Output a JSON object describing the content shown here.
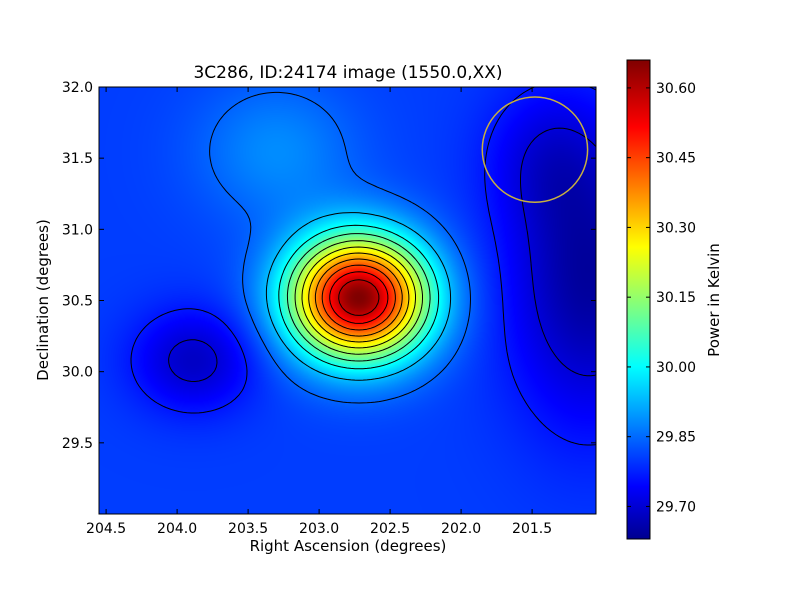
{
  "chart_data": {
    "type": "heatmap",
    "title": "3C286, ID:24174 image (1550.0,XX)",
    "xlabel": "Right Ascension (degrees)",
    "ylabel": "Declination (degrees)",
    "xlim": [
      204.55,
      201.05
    ],
    "ylim": [
      29.0,
      32.0
    ],
    "x_ticks": [
      204.5,
      204.0,
      203.5,
      203.0,
      202.5,
      202.0,
      201.5
    ],
    "x_tick_labels": [
      "204.5",
      "204.0",
      "203.5",
      "203.0",
      "202.5",
      "202.0",
      "201.5"
    ],
    "y_ticks": [
      29.5,
      30.0,
      30.5,
      31.0,
      31.5,
      32.0
    ],
    "y_tick_labels": [
      "29.5",
      "30.0",
      "30.5",
      "31.0",
      "31.5",
      "32.0"
    ],
    "grid": false,
    "colormap": "jet",
    "colorbar": {
      "label": "Power in Kelvin",
      "range": [
        29.63,
        30.66
      ],
      "ticks": [
        29.7,
        29.85,
        30.0,
        30.15,
        30.3,
        30.45,
        30.6
      ],
      "tick_labels": [
        "29.70",
        "29.85",
        "30.00",
        "30.15",
        "30.30",
        "30.45",
        "30.60"
      ]
    },
    "base_level": 29.82,
    "sources": [
      {
        "ra": 202.72,
        "dec": 30.52,
        "peak": 30.66,
        "sigma_ra": 0.34,
        "sigma_dec": 0.3
      },
      {
        "ra": 203.3,
        "dec": 31.55,
        "peak": 29.9,
        "sigma_ra": 0.4,
        "sigma_dec": 0.35
      },
      {
        "ra": 203.88,
        "dec": 30.08,
        "peak": 29.7,
        "sigma_ra": 0.3,
        "sigma_dec": 0.25
      },
      {
        "ra": 201.1,
        "dec": 30.65,
        "peak": 29.66,
        "sigma_ra": 0.4,
        "sigma_dec": 0.7
      },
      {
        "ra": 201.4,
        "dec": 31.5,
        "peak": 29.75,
        "sigma_ra": 0.3,
        "sigma_dec": 0.35
      }
    ],
    "contour_levels": [
      29.72,
      29.78,
      29.86,
      29.95,
      30.03,
      30.1,
      30.17,
      30.24,
      30.31,
      30.38,
      30.45,
      30.52,
      30.59
    ],
    "beam_circle": {
      "ra": 201.48,
      "dec": 31.56,
      "radius_deg": 0.37,
      "color": "#c8b040"
    }
  }
}
